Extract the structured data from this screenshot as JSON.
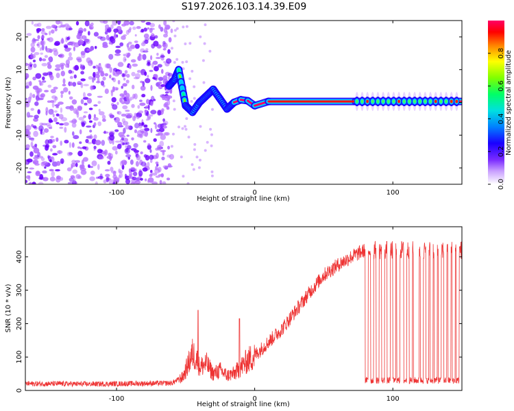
{
  "title": "S197.2026.103.14.39.E09",
  "chart_data": [
    {
      "type": "heatmap",
      "name": "spectrogram",
      "title": "S197.2026.103.14.39.E09",
      "xlabel": "Height of straight line (km)",
      "ylabel": "Frequency (Hz)",
      "xlim": [
        -166,
        150
      ],
      "ylim": [
        -25,
        25
      ],
      "xticks": [
        -100,
        0,
        100
      ],
      "yticks": [
        -20,
        -10,
        0,
        10,
        20
      ],
      "colorbar": {
        "label": "Normalized spectral amplitude",
        "range": [
          0,
          1
        ],
        "ticks": [
          0.0,
          0.2,
          0.4,
          0.6,
          0.8
        ],
        "colors": [
          "#ffffff",
          "#b36bff",
          "#6a00ff",
          "#0000ff",
          "#00c8ff",
          "#00ff7f",
          "#7fff00",
          "#ffff00",
          "#ff8000",
          "#ff0000",
          "#ff0060"
        ]
      },
      "regions": [
        {
          "label": "noise",
          "x": [
            -166,
            -60
          ],
          "amplitude": 0.15
        },
        {
          "label": "low-altitude fluctuation",
          "x": [
            -60,
            -15
          ],
          "amplitude": 0.45
        },
        {
          "label": "stable tone",
          "x": [
            -15,
            73
          ],
          "amplitude": 0.95,
          "freq": 0.3
        },
        {
          "label": "intermittent tone",
          "x": [
            73,
            150
          ],
          "amplitude": 0.5,
          "freq": 0.3
        }
      ],
      "tone_track": [
        {
          "x": -62,
          "f": 5
        },
        {
          "x": -58,
          "f": 7
        },
        {
          "x": -55,
          "f": 10
        },
        {
          "x": -50,
          "f": -1
        },
        {
          "x": -45,
          "f": -3
        },
        {
          "x": -40,
          "f": 0
        },
        {
          "x": -35,
          "f": 2
        },
        {
          "x": -30,
          "f": 4
        },
        {
          "x": -25,
          "f": 1
        },
        {
          "x": -20,
          "f": -2
        },
        {
          "x": -15,
          "f": 0
        },
        {
          "x": -10,
          "f": 0.8
        },
        {
          "x": -5,
          "f": 0.5
        },
        {
          "x": 0,
          "f": -1
        },
        {
          "x": 10,
          "f": 0.3
        },
        {
          "x": 73,
          "f": 0.3
        },
        {
          "x": 150,
          "f": 0.3
        }
      ]
    },
    {
      "type": "line",
      "name": "snr",
      "xlabel": "Height of straight line (km)",
      "ylabel": "SNR (10 * v/v)",
      "xlim": [
        -166,
        150
      ],
      "ylim": [
        0,
        490
      ],
      "xticks": [
        -100,
        0,
        100
      ],
      "yticks": [
        0,
        100,
        200,
        300,
        400
      ],
      "color": "#ee3333",
      "x": [
        -166,
        -140,
        -120,
        -100,
        -80,
        -60,
        -52,
        -48,
        -45,
        -42,
        -40,
        -35,
        -30,
        -25,
        -20,
        -15,
        -10,
        -5,
        0,
        5,
        10,
        20,
        30,
        40,
        50,
        60,
        70,
        80
      ],
      "y": [
        20,
        20,
        19,
        20,
        21,
        22,
        40,
        80,
        110,
        95,
        70,
        80,
        50,
        60,
        45,
        50,
        70,
        90,
        105,
        125,
        145,
        185,
        240,
        295,
        345,
        375,
        400,
        420
      ],
      "intermittent_segment": {
        "x_range": [
          80,
          150
        ],
        "high": 420,
        "low": 30,
        "dropouts_x": [
          81,
          85,
          89,
          93,
          97,
          101,
          104,
          109,
          113,
          116,
          118,
          121,
          125,
          128,
          131,
          134,
          138,
          141,
          144,
          147
        ]
      },
      "spikes": [
        {
          "x": -41,
          "y": 240
        },
        {
          "x": -11,
          "y": 215
        }
      ]
    }
  ]
}
